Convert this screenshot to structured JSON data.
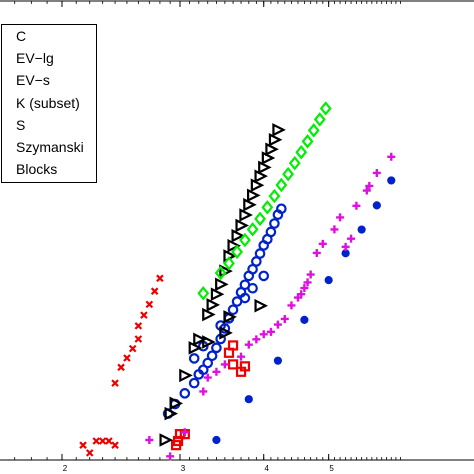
{
  "chart_data": {
    "type": "scatter",
    "title": "",
    "xlabel": "",
    "ylabel": "",
    "xscale": "log",
    "yscale": "log",
    "x_tick_labels": [
      "2",
      "3",
      "4",
      "5"
    ],
    "legend_placement": "top-left",
    "grid": false,
    "series": [
      {
        "name": "C",
        "marker": "filled-circle",
        "color": "#0022cc",
        "points": [
          [
            3.4,
            1.0
          ],
          [
            3.8,
            1.5
          ],
          [
            4.2,
            2.2
          ],
          [
            4.6,
            3.3
          ],
          [
            5.0,
            4.9
          ],
          [
            5.3,
            6.4
          ],
          [
            5.6,
            8.1
          ],
          [
            5.9,
            10.3
          ],
          [
            6.2,
            13.2
          ]
        ]
      },
      {
        "name": "EV-lg",
        "marker": "x",
        "color": "#ee0000",
        "points": [
          [
            2.05,
            0.69
          ],
          [
            2.15,
            0.95
          ],
          [
            2.2,
            0.88
          ],
          [
            2.25,
            0.99
          ],
          [
            2.3,
            0.99
          ],
          [
            2.35,
            0.99
          ],
          [
            2.4,
            0.95
          ],
          [
            2.4,
            1.76
          ],
          [
            2.45,
            2.06
          ],
          [
            2.5,
            2.26
          ],
          [
            2.55,
            2.48
          ],
          [
            2.6,
            2.73
          ],
          [
            2.6,
            3.11
          ],
          [
            2.65,
            3.46
          ],
          [
            2.7,
            3.85
          ],
          [
            2.75,
            4.39
          ],
          [
            2.8,
            4.99
          ]
        ]
      },
      {
        "name": "EV-s",
        "marker": "open-square",
        "color": "#ee0000",
        "points": [
          [
            2.96,
            0.95
          ],
          [
            3.05,
            1.06
          ],
          [
            3.0,
            1.06
          ],
          [
            2.98,
            0.99
          ],
          [
            3.55,
            2.38
          ],
          [
            3.6,
            2.12
          ],
          [
            3.7,
            1.97
          ],
          [
            3.75,
            2.08
          ],
          [
            3.6,
            2.56
          ]
        ]
      },
      {
        "name": "K (subset)",
        "marker": "open-circle",
        "color": "#0022cc",
        "points": [
          [
            2.88,
            1.3
          ],
          [
            2.95,
            1.43
          ],
          [
            3.05,
            1.59
          ],
          [
            3.15,
            1.76
          ],
          [
            3.2,
            1.92
          ],
          [
            3.25,
            2.01
          ],
          [
            3.3,
            2.15
          ],
          [
            3.35,
            2.31
          ],
          [
            3.4,
            2.5
          ],
          [
            3.45,
            2.73
          ],
          [
            3.5,
            3.03
          ],
          [
            3.55,
            3.35
          ],
          [
            3.6,
            3.65
          ],
          [
            3.65,
            3.96
          ],
          [
            3.7,
            4.34
          ],
          [
            3.75,
            4.68
          ],
          [
            3.8,
            5.11
          ],
          [
            3.85,
            5.46
          ],
          [
            3.9,
            5.9
          ],
          [
            3.95,
            6.38
          ],
          [
            4.0,
            6.92
          ],
          [
            4.05,
            7.36
          ],
          [
            4.1,
            7.91
          ],
          [
            4.15,
            8.6
          ],
          [
            4.2,
            9.39
          ],
          [
            4.25,
            9.96
          ],
          [
            3.15,
            2.25
          ],
          [
            3.25,
            2.54
          ],
          [
            3.45,
            3.12
          ],
          [
            3.55,
            3.36
          ],
          [
            3.75,
            4.1
          ],
          [
            3.85,
            4.52
          ],
          [
            4.0,
            5.11
          ]
        ]
      },
      {
        "name": "S",
        "marker": "plus",
        "color": "#dd11dd",
        "points": [
          [
            2.7,
            1.0
          ],
          [
            2.9,
            0.85
          ],
          [
            3.05,
            1.08
          ],
          [
            3.25,
            1.62
          ],
          [
            3.3,
            1.86
          ],
          [
            3.4,
            1.97
          ],
          [
            3.5,
            2.12
          ],
          [
            3.7,
            2.29
          ],
          [
            3.8,
            2.58
          ],
          [
            3.9,
            2.72
          ],
          [
            4.0,
            2.86
          ],
          [
            4.1,
            2.93
          ],
          [
            4.2,
            3.15
          ],
          [
            4.3,
            3.33
          ],
          [
            4.4,
            3.81
          ],
          [
            4.5,
            4.12
          ],
          [
            4.55,
            4.26
          ],
          [
            4.6,
            4.53
          ],
          [
            4.65,
            4.79
          ],
          [
            4.7,
            5.18
          ],
          [
            4.8,
            6.42
          ],
          [
            4.9,
            7.03
          ],
          [
            5.1,
            8.11
          ],
          [
            5.2,
            9.14
          ],
          [
            5.3,
            6.82
          ],
          [
            5.4,
            7.4
          ],
          [
            5.5,
            10.26
          ],
          [
            5.7,
            11.94
          ],
          [
            5.9,
            14.22
          ],
          [
            6.2,
            16.7
          ],
          [
            5.75,
            12.5
          ]
        ]
      },
      {
        "name": "Szymanski",
        "marker": "open-triangle-right",
        "color": "#000000",
        "points": [
          [
            2.05,
            0.62
          ],
          [
            2.85,
            1.0
          ],
          [
            2.9,
            1.3
          ],
          [
            2.95,
            1.44
          ],
          [
            3.05,
            1.9
          ],
          [
            3.15,
            2.5
          ],
          [
            3.2,
            2.72
          ],
          [
            3.3,
            3.48
          ],
          [
            3.35,
            3.83
          ],
          [
            3.4,
            4.26
          ],
          [
            3.45,
            4.7
          ],
          [
            3.5,
            5.36
          ],
          [
            3.55,
            6.23
          ],
          [
            3.6,
            6.9
          ],
          [
            3.65,
            7.62
          ],
          [
            3.7,
            8.43
          ],
          [
            3.75,
            9.36
          ],
          [
            3.8,
            10.37
          ],
          [
            3.85,
            11.38
          ],
          [
            3.9,
            12.59
          ],
          [
            3.95,
            13.77
          ],
          [
            4.0,
            15.03
          ],
          [
            4.05,
            16.5
          ],
          [
            4.1,
            18.0
          ],
          [
            4.15,
            19.78
          ],
          [
            4.2,
            21.83
          ],
          [
            3.3,
            2.65
          ],
          [
            3.5,
            2.9
          ],
          [
            3.55,
            3.4
          ],
          [
            3.95,
            3.8
          ]
        ]
      },
      {
        "name": "Blocks",
        "marker": "open-diamond",
        "color": "#00ee00",
        "points": [
          [
            3.25,
            4.3
          ],
          [
            3.45,
            5.26
          ],
          [
            3.55,
            5.79
          ],
          [
            3.65,
            6.49
          ],
          [
            3.75,
            7.3
          ],
          [
            3.85,
            8.12
          ],
          [
            3.95,
            9.01
          ],
          [
            4.05,
            10.1
          ],
          [
            4.15,
            11.3
          ],
          [
            4.25,
            12.61
          ],
          [
            4.35,
            14.06
          ],
          [
            4.45,
            15.67
          ],
          [
            4.55,
            17.47
          ],
          [
            4.65,
            19.47
          ],
          [
            4.75,
            21.71
          ],
          [
            4.85,
            24.21
          ],
          [
            4.95,
            27.0
          ]
        ]
      }
    ]
  },
  "legend": [
    "C",
    "EV−lg",
    "EV−s",
    "K (subset)",
    "S",
    "Szymanski",
    "Blocks"
  ]
}
